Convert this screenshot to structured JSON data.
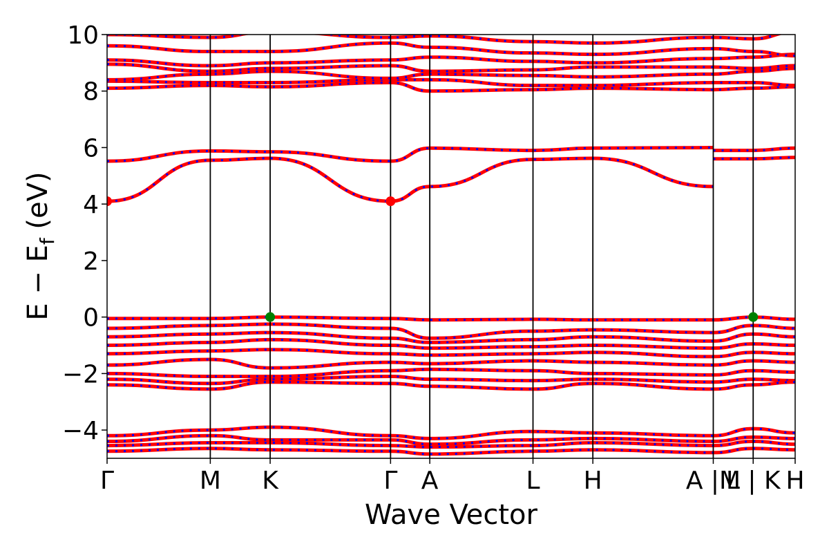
{
  "chart_data": {
    "type": "line",
    "title": "",
    "xlabel": "Wave Vector",
    "ylabel": "E − E",
    "ylabel_subscript": "f",
    "ylabel_unit": "(eV)",
    "ylim": [
      -5,
      10
    ],
    "yticks": [
      -4,
      -2,
      0,
      2,
      4,
      6,
      8,
      10
    ],
    "ytick_labels": [
      "−4",
      "−2",
      "0",
      "2",
      "4",
      "6",
      "8",
      "10"
    ],
    "xlim": [
      0,
      10
    ],
    "kpoints": [
      {
        "label": "Γ",
        "x": 0.0
      },
      {
        "label": "M",
        "x": 1.5
      },
      {
        "label": "K",
        "x": 2.37
      },
      {
        "label": "Γ",
        "x": 4.12
      },
      {
        "label": "A",
        "x": 4.69
      },
      {
        "label": "L",
        "x": 6.19
      },
      {
        "label": "H",
        "x": 7.06
      },
      {
        "label": "A |M",
        "x": 8.81
      },
      {
        "label": "L | K",
        "x": 9.39
      },
      {
        "label": "H",
        "x": 10.0
      }
    ],
    "vertical_lines_x": [
      1.5,
      2.37,
      4.12,
      4.69,
      6.19,
      7.06,
      8.81,
      9.39
    ],
    "colors": {
      "band": "#ff0000",
      "overlay": "#0000ff",
      "cbm": "#ff0000",
      "vbm": "#008000"
    },
    "extrema_markers": [
      {
        "kind": "CBM",
        "x": 0.0,
        "y": 4.1,
        "color": "#ff0000"
      },
      {
        "kind": "CBM",
        "x": 4.12,
        "y": 4.1,
        "color": "#ff0000"
      },
      {
        "kind": "VBM",
        "x": 2.37,
        "y": 0.0,
        "color": "#008000"
      },
      {
        "kind": "VBM",
        "x": 9.39,
        "y": 0.0,
        "color": "#008000"
      }
    ],
    "series": [
      {
        "x": [
          0,
          1.5,
          2.37,
          4.12,
          4.69,
          6.19,
          7.06,
          8.81
        ],
        "y": [
          4.1,
          5.55,
          5.62,
          4.1,
          4.62,
          5.58,
          5.62,
          4.62
        ]
      },
      {
        "x": [
          0,
          1.5,
          2.37,
          4.12,
          4.69,
          6.19,
          7.06,
          8.81
        ],
        "y": [
          5.52,
          5.88,
          5.85,
          5.52,
          5.98,
          5.9,
          5.98,
          6.0
        ]
      },
      {
        "x": [
          8.81,
          9.39,
          10
        ],
        "y": [
          5.6,
          5.6,
          5.65
        ]
      },
      {
        "x": [
          8.81,
          9.39,
          10
        ],
        "y": [
          5.9,
          5.9,
          5.98
        ]
      },
      {
        "x": [
          0,
          1.5,
          2.37,
          4.12,
          4.69,
          6.19,
          7.06,
          8.81,
          9.39,
          10
        ],
        "y": [
          8.1,
          8.2,
          8.15,
          8.3,
          8.0,
          8.05,
          8.1,
          8.05,
          8.1,
          8.15
        ]
      },
      {
        "x": [
          0,
          1.5,
          2.37,
          4.12,
          4.69,
          6.19,
          7.06,
          8.81,
          9.39,
          10
        ],
        "y": [
          8.35,
          8.3,
          8.3,
          8.4,
          8.4,
          8.2,
          8.2,
          8.3,
          8.3,
          8.2
        ]
      },
      {
        "x": [
          0,
          1.5,
          2.37,
          4.12,
          4.69,
          6.19,
          7.06,
          8.81,
          9.39,
          10
        ],
        "y": [
          8.4,
          8.6,
          8.7,
          8.45,
          8.6,
          8.55,
          8.5,
          8.6,
          8.7,
          8.8
        ]
      },
      {
        "x": [
          0,
          1.5,
          2.37,
          4.12,
          4.69,
          6.19,
          7.06,
          8.81,
          9.39,
          10
        ],
        "y": [
          8.95,
          8.7,
          8.8,
          8.9,
          8.7,
          8.75,
          8.85,
          8.85,
          8.8,
          8.9
        ]
      },
      {
        "x": [
          0,
          1.5,
          2.37,
          4.12,
          4.69,
          6.19,
          7.06,
          8.81,
          9.39,
          10
        ],
        "y": [
          9.1,
          8.9,
          9.0,
          9.1,
          9.2,
          9.05,
          9.0,
          9.15,
          9.2,
          9.3
        ]
      },
      {
        "x": [
          0,
          1.5,
          2.37,
          4.12,
          4.69,
          6.19,
          7.06,
          8.81,
          9.39,
          10
        ],
        "y": [
          9.6,
          9.4,
          9.4,
          9.7,
          9.55,
          9.35,
          9.3,
          9.5,
          9.4,
          9.25
        ]
      },
      {
        "x": [
          0,
          1.5,
          2.37,
          4.12,
          4.69,
          6.19,
          7.06,
          8.81,
          9.39,
          10
        ],
        "y": [
          10.0,
          9.9,
          10.1,
          9.9,
          9.95,
          9.75,
          9.7,
          9.9,
          9.85,
          10.1
        ]
      },
      {
        "x": [
          0,
          1.5,
          2.37,
          4.12,
          4.69,
          6.19,
          7.06,
          8.81,
          9.39,
          10
        ],
        "y": [
          -0.05,
          -0.05,
          0.0,
          -0.05,
          -0.1,
          -0.08,
          -0.1,
          -0.1,
          0.0,
          -0.08
        ]
      },
      {
        "x": [
          0,
          1.5,
          2.37,
          4.12,
          4.69,
          6.19,
          7.06,
          8.81,
          9.39,
          10
        ],
        "y": [
          -0.4,
          -0.3,
          -0.25,
          -0.4,
          -0.75,
          -0.5,
          -0.45,
          -0.55,
          -0.3,
          -0.4
        ]
      },
      {
        "x": [
          0,
          1.5,
          2.37,
          4.12,
          4.69,
          6.19,
          7.06,
          8.81,
          9.39,
          10
        ],
        "y": [
          -0.7,
          -0.6,
          -0.55,
          -0.75,
          -0.9,
          -0.8,
          -0.7,
          -0.85,
          -0.6,
          -0.7
        ]
      },
      {
        "x": [
          0,
          1.5,
          2.37,
          4.12,
          4.69,
          6.19,
          7.06,
          8.81,
          9.39,
          10
        ],
        "y": [
          -1.0,
          -0.9,
          -0.8,
          -1.0,
          -1.1,
          -1.05,
          -1.0,
          -1.1,
          -0.95,
          -1.0
        ]
      },
      {
        "x": [
          0,
          1.5,
          2.37,
          4.12,
          4.69,
          6.19,
          7.06,
          8.81,
          9.39,
          10
        ],
        "y": [
          -1.3,
          -1.2,
          -1.15,
          -1.3,
          -1.35,
          -1.3,
          -1.25,
          -1.4,
          -1.25,
          -1.3
        ]
      },
      {
        "x": [
          0,
          1.5,
          2.37,
          4.12,
          4.69,
          6.19,
          7.06,
          8.81,
          9.39,
          10
        ],
        "y": [
          -1.7,
          -1.5,
          -1.8,
          -1.6,
          -1.65,
          -1.55,
          -1.6,
          -1.7,
          -1.55,
          -1.6
        ]
      },
      {
        "x": [
          0,
          1.5,
          2.37,
          4.12,
          4.69,
          6.19,
          7.06,
          8.81,
          9.39,
          10
        ],
        "y": [
          -2.0,
          -2.1,
          -2.1,
          -1.9,
          -1.85,
          -1.9,
          -2.0,
          -2.05,
          -1.9,
          -1.95
        ]
      },
      {
        "x": [
          0,
          1.5,
          2.37,
          4.12,
          4.69,
          6.19,
          7.06,
          8.81,
          9.39,
          10
        ],
        "y": [
          -2.2,
          -2.35,
          -2.2,
          -2.1,
          -2.2,
          -2.25,
          -2.2,
          -2.3,
          -2.2,
          -2.25
        ]
      },
      {
        "x": [
          0,
          1.5,
          2.37,
          4.12,
          4.69,
          6.19,
          7.06,
          8.81,
          9.39,
          10
        ],
        "y": [
          -2.4,
          -2.55,
          -2.3,
          -2.35,
          -2.45,
          -2.55,
          -2.35,
          -2.55,
          -2.4,
          -2.3
        ]
      },
      {
        "x": [
          0,
          1.5,
          2.37,
          4.12,
          4.69,
          6.19,
          7.06,
          8.81,
          9.39,
          10
        ],
        "y": [
          -4.2,
          -4.0,
          -3.9,
          -4.2,
          -4.3,
          -4.05,
          -4.1,
          -4.2,
          -3.95,
          -4.1
        ]
      },
      {
        "x": [
          0,
          1.5,
          2.37,
          4.12,
          4.69,
          6.19,
          7.06,
          8.81,
          9.39,
          10
        ],
        "y": [
          -4.4,
          -4.2,
          -4.35,
          -4.35,
          -4.5,
          -4.35,
          -4.3,
          -4.4,
          -4.25,
          -4.3
        ]
      },
      {
        "x": [
          0,
          1.5,
          2.37,
          4.12,
          4.69,
          6.19,
          7.06,
          8.81,
          9.39,
          10
        ],
        "y": [
          -4.55,
          -4.45,
          -4.45,
          -4.55,
          -4.6,
          -4.55,
          -4.45,
          -4.55,
          -4.4,
          -4.5
        ]
      },
      {
        "x": [
          0,
          1.5,
          2.37,
          4.12,
          4.69,
          6.19,
          7.06,
          8.81,
          9.39,
          10
        ],
        "y": [
          -4.75,
          -4.65,
          -4.7,
          -4.75,
          -4.85,
          -4.75,
          -4.7,
          -4.8,
          -4.65,
          -4.7
        ]
      }
    ]
  }
}
